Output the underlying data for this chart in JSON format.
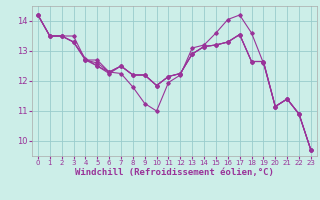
{
  "background_color": "#cceee8",
  "line_color": "#993399",
  "grid_color": "#99cccc",
  "xlabel": "Windchill (Refroidissement éolien,°C)",
  "xlabel_fontsize": 6.5,
  "tick_fontsize": 6,
  "xlim": [
    -0.5,
    23.5
  ],
  "ylim": [
    9.5,
    14.5
  ],
  "yticks": [
    10,
    11,
    12,
    13,
    14
  ],
  "xticks": [
    0,
    1,
    2,
    3,
    4,
    5,
    6,
    7,
    8,
    9,
    10,
    11,
    12,
    13,
    14,
    15,
    16,
    17,
    18,
    19,
    20,
    21,
    22,
    23
  ],
  "lines": [
    {
      "x": [
        0,
        1,
        2,
        3,
        4,
        5,
        6,
        7,
        8,
        9,
        10,
        11,
        12,
        13,
        14,
        15,
        16,
        17,
        18,
        19,
        20,
        21,
        22,
        23
      ],
      "y": [
        14.2,
        13.5,
        13.5,
        13.5,
        12.7,
        12.7,
        12.3,
        12.25,
        11.8,
        11.25,
        11.0,
        11.95,
        12.2,
        13.1,
        13.2,
        13.6,
        14.05,
        14.2,
        13.6,
        12.6,
        11.15,
        11.4,
        10.9,
        9.7
      ]
    },
    {
      "x": [
        0,
        1,
        2,
        3,
        4,
        5,
        6,
        7,
        8,
        9,
        10,
        11,
        12,
        13,
        14,
        15,
        16,
        17,
        18,
        19,
        20,
        21,
        22,
        23
      ],
      "y": [
        14.2,
        13.5,
        13.5,
        13.3,
        12.7,
        12.6,
        12.3,
        12.5,
        12.2,
        12.2,
        11.85,
        12.15,
        12.25,
        12.9,
        13.15,
        13.2,
        13.3,
        13.55,
        12.65,
        12.65,
        11.15,
        11.4,
        10.9,
        9.7
      ]
    },
    {
      "x": [
        0,
        1,
        2,
        3,
        4,
        5,
        6,
        7,
        8,
        9,
        10,
        11,
        12,
        13,
        14,
        15,
        16,
        17,
        18,
        19,
        20,
        21,
        22,
        23
      ],
      "y": [
        14.2,
        13.5,
        13.5,
        13.3,
        12.7,
        12.5,
        12.25,
        12.5,
        12.2,
        12.2,
        11.85,
        12.15,
        12.25,
        12.9,
        13.15,
        13.2,
        13.3,
        13.55,
        12.65,
        12.65,
        11.15,
        11.4,
        10.9,
        9.7
      ]
    },
    {
      "x": [
        0,
        1,
        2,
        3,
        4,
        5,
        6,
        7,
        8,
        9,
        10,
        11,
        12,
        13,
        14,
        15,
        16,
        17,
        18,
        19,
        20,
        21,
        22,
        23
      ],
      "y": [
        14.2,
        13.5,
        13.5,
        13.3,
        12.75,
        12.5,
        12.3,
        12.5,
        12.2,
        12.2,
        11.85,
        12.15,
        12.25,
        12.9,
        13.15,
        13.2,
        13.3,
        13.55,
        12.65,
        12.65,
        11.15,
        11.4,
        10.9,
        9.7
      ]
    }
  ]
}
